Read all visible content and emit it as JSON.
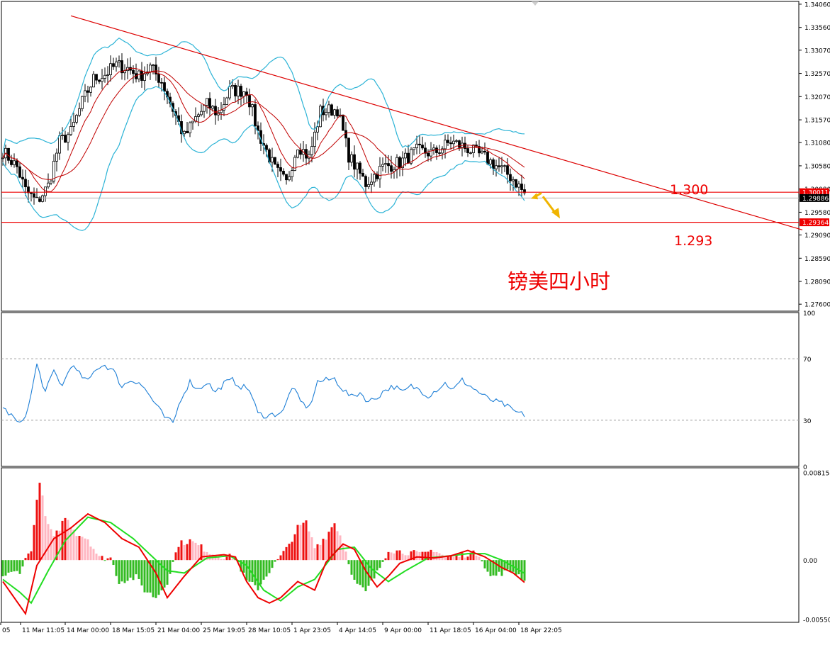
{
  "colors": {
    "background": "#ffffff",
    "frame": "#000000",
    "grid_dashed": "#a0a0a0",
    "trendline": "#dd0000",
    "level_line": "#ee0000",
    "bollinger_outer": "#2bb3d6",
    "ma": "#c00000",
    "rsi": "#1e7fd6",
    "macd_hist_pos_strong": "#ee1111",
    "macd_hist_pos_weak": "#ffb6c1",
    "macd_hist_neg": "#33bb22",
    "macd_line": "#ee0000",
    "signal_line": "#22dd22",
    "annotation_arrow": "#f0b400",
    "price_tag_red": "#ee0000",
    "price_tag_black": "#000000"
  },
  "chart_data": [
    {
      "type": "candlestick",
      "panel": "price",
      "title": "",
      "ylim": [
        1.2745,
        1.3412
      ],
      "y_ticks": [
        "1.34060",
        "1.33560",
        "1.33070",
        "1.32570",
        "1.32070",
        "1.31570",
        "1.31080",
        "1.30580",
        "1.30080",
        "1.29580",
        "1.29090",
        "1.28590",
        "1.28090",
        "1.27600"
      ],
      "y_tick_values": [
        1.3406,
        1.3356,
        1.3307,
        1.3257,
        1.3207,
        1.3157,
        1.3108,
        1.3058,
        1.3008,
        1.2958,
        1.2909,
        1.2859,
        1.2809,
        1.276
      ],
      "x_labels": [
        "05",
        "11 Mar 11:05",
        "14 Mar 00:00",
        "18 Mar 15:05",
        "21 Mar 04:00",
        "25 Mar 19:05",
        "28 Mar 10:05",
        "1 Apr 23:05",
        "4 Apr 14:05",
        "9 Apr 00:00",
        "11 Apr 18:05",
        "16 Apr 04:00",
        "18 Apr 22:05"
      ],
      "bar_count": 185,
      "price_anchors": [
        [
          0,
          1.309
        ],
        [
          5,
          1.3055
        ],
        [
          8,
          1.3005
        ],
        [
          12,
          1.298
        ],
        [
          16,
          1.3015
        ],
        [
          20,
          1.311
        ],
        [
          24,
          1.313
        ],
        [
          28,
          1.3195
        ],
        [
          32,
          1.3245
        ],
        [
          36,
          1.3255
        ],
        [
          40,
          1.3275
        ],
        [
          44,
          1.3268
        ],
        [
          48,
          1.325
        ],
        [
          52,
          1.327
        ],
        [
          56,
          1.324
        ],
        [
          60,
          1.318
        ],
        [
          64,
          1.312
        ],
        [
          68,
          1.316
        ],
        [
          72,
          1.319
        ],
        [
          76,
          1.317
        ],
        [
          80,
          1.322
        ],
        [
          86,
          1.322
        ],
        [
          90,
          1.313
        ],
        [
          96,
          1.305
        ],
        [
          100,
          1.302
        ],
        [
          104,
          1.3105
        ],
        [
          108,
          1.3075
        ],
        [
          112,
          1.3175
        ],
        [
          118,
          1.318
        ],
        [
          122,
          1.308
        ],
        [
          128,
          1.302
        ],
        [
          134,
          1.3055
        ],
        [
          140,
          1.3065
        ],
        [
          146,
          1.309
        ],
        [
          152,
          1.3085
        ],
        [
          158,
          1.311
        ],
        [
          164,
          1.3095
        ],
        [
          170,
          1.3075
        ],
        [
          176,
          1.305
        ],
        [
          180,
          1.303
        ],
        [
          185,
          1.299
        ]
      ],
      "trendline": {
        "from": [
          24,
          1.3381
        ],
        "to": [
          282,
          1.292
        ]
      },
      "levels": [
        {
          "value": 1.30011,
          "tag": "1.30011",
          "label": "1.300"
        },
        {
          "value": 1.29364,
          "tag": "1.29364",
          "label": "1.293"
        }
      ],
      "current_price": {
        "value": 1.29886,
        "tag": "1.29886"
      },
      "annotation": "镑美四小时"
    },
    {
      "type": "line",
      "panel": "rsi",
      "ylim": [
        0,
        100
      ],
      "y_ticks": [
        "100",
        "70",
        "30",
        "0"
      ],
      "y_tick_values": [
        100,
        70,
        30,
        0
      ],
      "levels": [
        70,
        30
      ],
      "series": [
        {
          "values_anchor": [
            [
              0,
              38
            ],
            [
              3,
              33
            ],
            [
              6,
              27
            ],
            [
              9,
              38
            ],
            [
              12,
              66
            ],
            [
              15,
              48
            ],
            [
              18,
              62
            ],
            [
              21,
              52
            ],
            [
              24,
              66
            ],
            [
              27,
              60
            ],
            [
              30,
              55
            ],
            [
              33,
              64
            ],
            [
              36,
              66
            ],
            [
              39,
              62
            ],
            [
              42,
              52
            ],
            [
              45,
              56
            ],
            [
              48,
              55
            ],
            [
              51,
              48
            ],
            [
              54,
              40
            ],
            [
              57,
              32
            ],
            [
              60,
              28
            ],
            [
              63,
              45
            ],
            [
              66,
              55
            ],
            [
              69,
              50
            ],
            [
              72,
              55
            ],
            [
              75,
              48
            ],
            [
              78,
              54
            ],
            [
              81,
              56
            ],
            [
              84,
              52
            ],
            [
              87,
              50
            ],
            [
              90,
              34
            ],
            [
              93,
              33
            ],
            [
              96,
              34
            ],
            [
              99,
              36
            ],
            [
              102,
              52
            ],
            [
              105,
              42
            ],
            [
              108,
              38
            ],
            [
              111,
              55
            ],
            [
              114,
              56
            ],
            [
              117,
              57
            ],
            [
              120,
              50
            ],
            [
              123,
              45
            ],
            [
              126,
              48
            ],
            [
              129,
              42
            ],
            [
              132,
              45
            ],
            [
              135,
              50
            ],
            [
              138,
              52
            ],
            [
              141,
              48
            ],
            [
              144,
              52
            ],
            [
              147,
              50
            ],
            [
              150,
              46
            ],
            [
              153,
              50
            ],
            [
              156,
              54
            ],
            [
              159,
              50
            ],
            [
              162,
              56
            ],
            [
              165,
              52
            ],
            [
              168,
              48
            ],
            [
              171,
              44
            ],
            [
              174,
              42
            ],
            [
              177,
              40
            ],
            [
              180,
              36
            ],
            [
              183,
              34
            ],
            [
              185,
              33
            ]
          ]
        }
      ]
    },
    {
      "type": "bar+line",
      "panel": "macd",
      "ylim": [
        -0.0058,
        0.0086
      ],
      "y_ticks": [
        "0.008158",
        "0.00",
        "-0.005504"
      ],
      "y_tick_values": [
        0.008158,
        0,
        -0.005504
      ],
      "histogram_anchor": [
        [
          0,
          -0.0015
        ],
        [
          6,
          -0.001
        ],
        [
          10,
          0.0011
        ],
        [
          13,
          0.0075
        ],
        [
          15,
          0.004
        ],
        [
          18,
          0.002
        ],
        [
          22,
          0.004
        ],
        [
          26,
          0.0025
        ],
        [
          30,
          0.002
        ],
        [
          34,
          0.0002
        ],
        [
          38,
          0.0002
        ],
        [
          41,
          -0.002
        ],
        [
          47,
          -0.0016
        ],
        [
          50,
          -0.0028
        ],
        [
          54,
          -0.0035
        ],
        [
          58,
          -0.002
        ],
        [
          62,
          0.0015
        ],
        [
          66,
          0.0018
        ],
        [
          70,
          0.0012
        ],
        [
          74,
          0.0006
        ],
        [
          78,
          0.0003
        ],
        [
          82,
          0.0003
        ],
        [
          86,
          -0.002
        ],
        [
          90,
          -0.0026
        ],
        [
          94,
          -0.001
        ],
        [
          100,
          0.001
        ],
        [
          104,
          0.003
        ],
        [
          107,
          0.0035
        ],
        [
          110,
          0.0012
        ],
        [
          114,
          0.0022
        ],
        [
          117,
          0.0035
        ],
        [
          120,
          0.0017
        ],
        [
          124,
          -0.002
        ],
        [
          128,
          -0.003
        ],
        [
          132,
          -0.0012
        ],
        [
          136,
          0.001
        ],
        [
          140,
          0.0008
        ],
        [
          144,
          0.0007
        ],
        [
          148,
          0.0005
        ],
        [
          152,
          0.001
        ],
        [
          156,
          0.0003
        ],
        [
          160,
          0.0003
        ],
        [
          164,
          0.0006
        ],
        [
          168,
          0.0006
        ],
        [
          172,
          -0.0016
        ],
        [
          176,
          -0.0012
        ],
        [
          180,
          -0.001
        ],
        [
          185,
          -0.002
        ]
      ],
      "series": [
        {
          "values_anchor": [
            [
              0,
              -0.002
            ],
            [
              4,
              -0.0035
            ],
            [
              8,
              -0.005
            ],
            [
              12,
              -0.0005
            ],
            [
              18,
              0.002
            ],
            [
              24,
              0.003
            ],
            [
              30,
              0.0043
            ],
            [
              36,
              0.0035
            ],
            [
              42,
              0.002
            ],
            [
              48,
              0.0012
            ],
            [
              54,
              -0.0012
            ],
            [
              58,
              -0.0035
            ],
            [
              64,
              -0.0015
            ],
            [
              70,
              0.0003
            ],
            [
              78,
              0.0005
            ],
            [
              82,
              0.0003
            ],
            [
              86,
              -0.002
            ],
            [
              90,
              -0.0035
            ],
            [
              94,
              -0.004
            ],
            [
              98,
              -0.0035
            ],
            [
              104,
              -0.002
            ],
            [
              110,
              -0.0028
            ],
            [
              114,
              -0.0002
            ],
            [
              120,
              0.0015
            ],
            [
              124,
              0.001
            ],
            [
              128,
              -0.001
            ],
            [
              132,
              -0.0025
            ],
            [
              136,
              -0.0015
            ],
            [
              140,
              -0.0003
            ],
            [
              146,
              0.0003
            ],
            [
              152,
              0.0002
            ],
            [
              158,
              0.0004
            ],
            [
              164,
              0.0009
            ],
            [
              170,
              0.0003
            ],
            [
              176,
              -0.0007
            ],
            [
              180,
              -0.0012
            ],
            [
              185,
              -0.0023
            ]
          ]
        },
        {
          "values_anchor": [
            [
              0,
              -0.0018
            ],
            [
              6,
              -0.003
            ],
            [
              10,
              -0.004
            ],
            [
              16,
              -0.001
            ],
            [
              22,
              0.0018
            ],
            [
              30,
              0.004
            ],
            [
              38,
              0.0035
            ],
            [
              46,
              0.002
            ],
            [
              52,
              0.0005
            ],
            [
              58,
              -0.001
            ],
            [
              64,
              -0.0012
            ],
            [
              72,
              0.0002
            ],
            [
              80,
              0.0004
            ],
            [
              86,
              -0.0005
            ],
            [
              92,
              -0.0028
            ],
            [
              98,
              -0.0038
            ],
            [
              104,
              -0.0025
            ],
            [
              110,
              -0.0018
            ],
            [
              118,
              0.001
            ],
            [
              124,
              0.0012
            ],
            [
              130,
              -0.0008
            ],
            [
              136,
              -0.002
            ],
            [
              142,
              -0.001
            ],
            [
              150,
              0.0002
            ],
            [
              158,
              0.0004
            ],
            [
              164,
              0.0006
            ],
            [
              170,
              0.0006
            ],
            [
              176,
              0.0
            ],
            [
              180,
              -0.0006
            ],
            [
              185,
              -0.0014
            ]
          ]
        }
      ]
    }
  ]
}
